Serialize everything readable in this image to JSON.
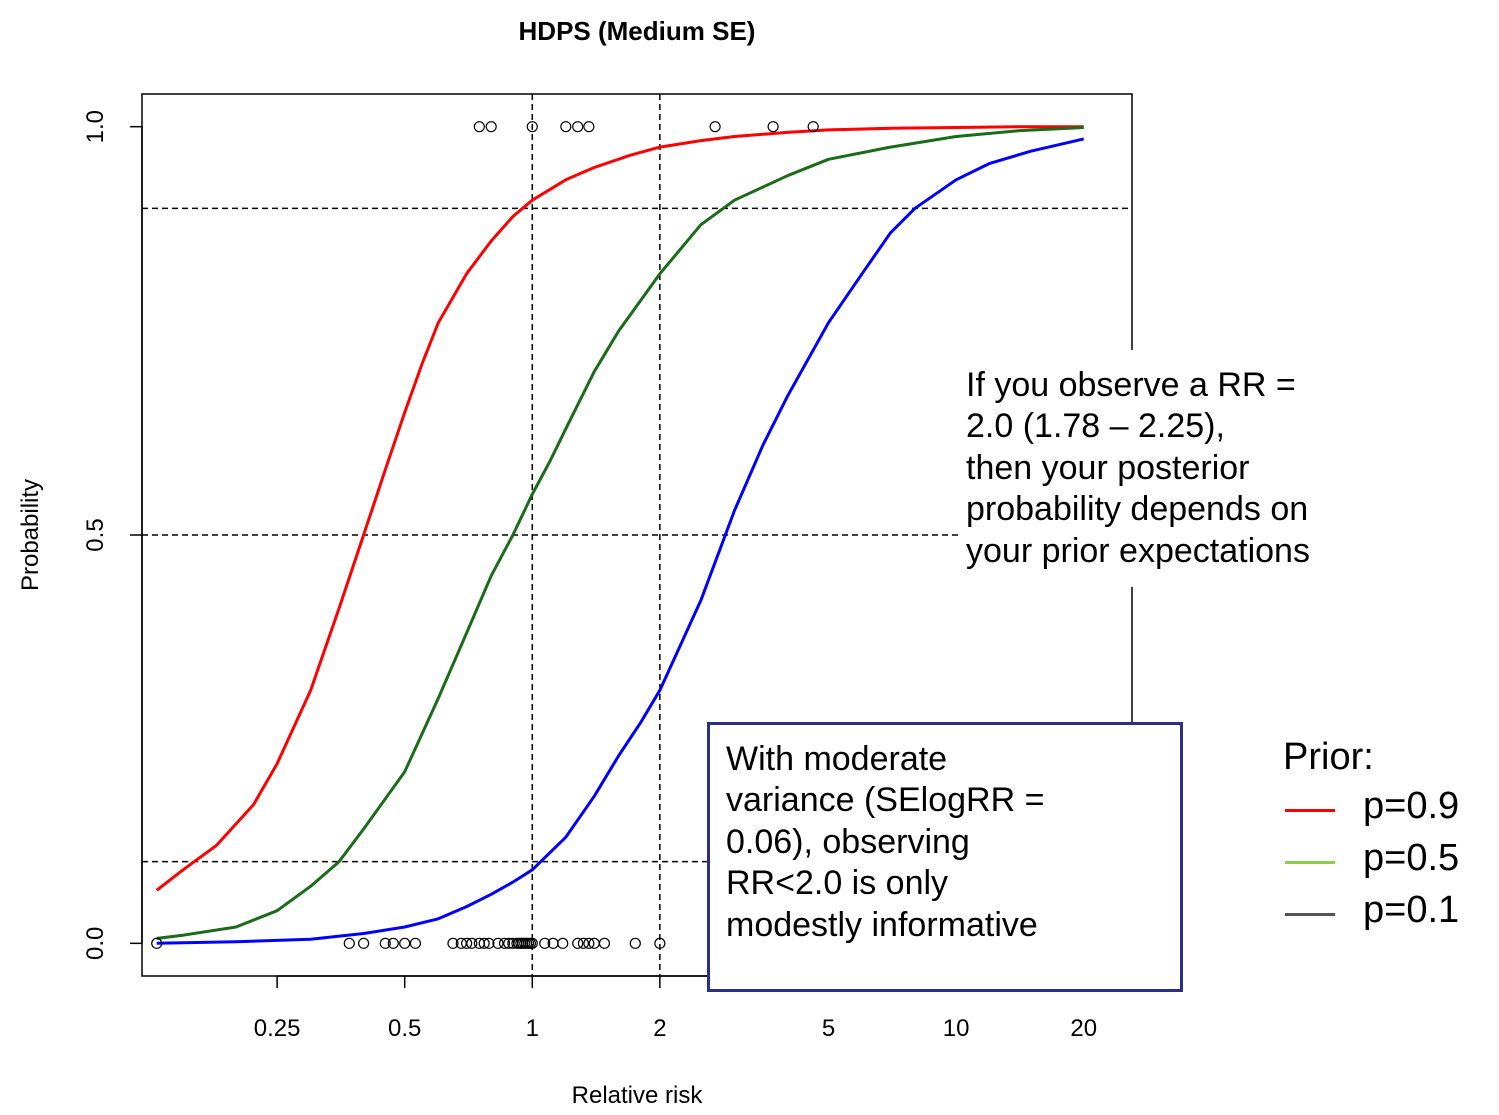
{
  "chart_data": {
    "type": "line",
    "title": "HDPS (Medium SE)",
    "xlabel": "Relative risk",
    "ylabel": "Probability",
    "xscale": "log",
    "xlim": [
      0.12,
      26
    ],
    "ylim": [
      -0.04,
      1.04
    ],
    "xticks": [
      0.25,
      0.5,
      1,
      2,
      5,
      10,
      20
    ],
    "xtick_labels": [
      "0.25",
      "0.5",
      "1",
      "2",
      "5",
      "10",
      "20"
    ],
    "yticks": [
      0.0,
      0.5,
      1.0
    ],
    "ytick_labels": [
      "0.0",
      "0.5",
      "1.0"
    ],
    "reference_lines": {
      "horizontal": [
        0.1,
        0.5,
        0.9
      ],
      "vertical": [
        1,
        2
      ]
    },
    "series": [
      {
        "color": "#ff0000",
        "x": [
          0.13,
          0.15,
          0.18,
          0.22,
          0.25,
          0.3,
          0.35,
          0.4,
          0.45,
          0.5,
          0.55,
          0.6,
          0.7,
          0.8,
          0.9,
          1.0,
          1.2,
          1.4,
          1.7,
          2.0,
          2.5,
          3.0,
          4.0,
          5.0,
          7.0,
          10.0,
          14.0,
          20.0
        ],
        "y": [
          0.065,
          0.09,
          0.12,
          0.17,
          0.22,
          0.31,
          0.41,
          0.5,
          0.58,
          0.65,
          0.71,
          0.76,
          0.82,
          0.86,
          0.89,
          0.91,
          0.935,
          0.95,
          0.965,
          0.975,
          0.983,
          0.988,
          0.993,
          0.996,
          0.998,
          0.999,
          1.0,
          1.0
        ]
      },
      {
        "color": "#1a6b1a",
        "x": [
          0.13,
          0.15,
          0.2,
          0.25,
          0.3,
          0.35,
          0.4,
          0.5,
          0.6,
          0.7,
          0.8,
          0.9,
          1.0,
          1.1,
          1.2,
          1.4,
          1.6,
          2.0,
          2.5,
          3.0,
          4.0,
          5.0,
          7.0,
          10.0,
          14.0,
          20.0
        ],
        "y": [
          0.006,
          0.01,
          0.02,
          0.04,
          0.07,
          0.1,
          0.14,
          0.21,
          0.3,
          0.38,
          0.45,
          0.5,
          0.55,
          0.59,
          0.63,
          0.7,
          0.75,
          0.82,
          0.88,
          0.91,
          0.94,
          0.96,
          0.975,
          0.988,
          0.995,
          0.999
        ]
      },
      {
        "color": "#0000ff",
        "x": [
          0.13,
          0.2,
          0.3,
          0.4,
          0.5,
          0.6,
          0.7,
          0.8,
          0.9,
          1.0,
          1.2,
          1.4,
          1.6,
          1.8,
          2.0,
          2.5,
          3.0,
          3.5,
          4.0,
          5.0,
          6.0,
          7.0,
          8.0,
          10.0,
          12.0,
          15.0,
          20.0
        ],
        "y": [
          0.0,
          0.002,
          0.005,
          0.012,
          0.02,
          0.03,
          0.045,
          0.06,
          0.075,
          0.09,
          0.13,
          0.18,
          0.23,
          0.27,
          0.31,
          0.42,
          0.53,
          0.61,
          0.67,
          0.76,
          0.82,
          0.87,
          0.9,
          0.935,
          0.955,
          0.97,
          0.985
        ]
      }
    ],
    "scatter_points": [
      {
        "x": 0.75,
        "y": 1
      },
      {
        "x": 0.8,
        "y": 1
      },
      {
        "x": 1.0,
        "y": 1
      },
      {
        "x": 1.2,
        "y": 1
      },
      {
        "x": 1.28,
        "y": 1
      },
      {
        "x": 1.36,
        "y": 1
      },
      {
        "x": 2.7,
        "y": 1
      },
      {
        "x": 3.7,
        "y": 1
      },
      {
        "x": 4.6,
        "y": 1
      },
      {
        "x": 0.13,
        "y": 0
      },
      {
        "x": 0.37,
        "y": 0
      },
      {
        "x": 0.4,
        "y": 0
      },
      {
        "x": 0.45,
        "y": 0
      },
      {
        "x": 0.47,
        "y": 0
      },
      {
        "x": 0.5,
        "y": 0
      },
      {
        "x": 0.53,
        "y": 0
      },
      {
        "x": 0.65,
        "y": 0
      },
      {
        "x": 0.68,
        "y": 0
      },
      {
        "x": 0.7,
        "y": 0
      },
      {
        "x": 0.72,
        "y": 0
      },
      {
        "x": 0.75,
        "y": 0
      },
      {
        "x": 0.77,
        "y": 0
      },
      {
        "x": 0.79,
        "y": 0
      },
      {
        "x": 0.83,
        "y": 0
      },
      {
        "x": 0.86,
        "y": 0
      },
      {
        "x": 0.88,
        "y": 0
      },
      {
        "x": 0.9,
        "y": 0
      },
      {
        "x": 0.92,
        "y": 0
      },
      {
        "x": 0.93,
        "y": 0
      },
      {
        "x": 0.94,
        "y": 0
      },
      {
        "x": 0.95,
        "y": 0
      },
      {
        "x": 0.96,
        "y": 0
      },
      {
        "x": 0.97,
        "y": 0
      },
      {
        "x": 0.98,
        "y": 0
      },
      {
        "x": 0.99,
        "y": 0
      },
      {
        "x": 1.0,
        "y": 0
      },
      {
        "x": 1.07,
        "y": 0
      },
      {
        "x": 1.12,
        "y": 0
      },
      {
        "x": 1.18,
        "y": 0
      },
      {
        "x": 1.28,
        "y": 0
      },
      {
        "x": 1.32,
        "y": 0
      },
      {
        "x": 1.36,
        "y": 0
      },
      {
        "x": 1.4,
        "y": 0
      },
      {
        "x": 1.48,
        "y": 0
      },
      {
        "x": 1.75,
        "y": 0
      },
      {
        "x": 2.0,
        "y": 0
      }
    ]
  },
  "annotations": {
    "posterior": {
      "lines": [
        "If you observe a RR =",
        "2.0 (1.78 – 2.25),",
        "then your posterior",
        "probability depends on",
        "your prior expectations"
      ]
    },
    "variance": {
      "lines": [
        "With moderate",
        "variance (SElogRR =",
        "0.06), observing",
        "RR<2.0 is only",
        "modestly informative"
      ],
      "border_color": "#2b2f87"
    }
  },
  "legend": {
    "title": "Prior:",
    "items": [
      {
        "label": "p=0.9",
        "color": "#ff0000"
      },
      {
        "label": "p=0.5",
        "color": "#8ccf4d"
      },
      {
        "label": "p=0.1",
        "color": "#555555"
      }
    ]
  }
}
